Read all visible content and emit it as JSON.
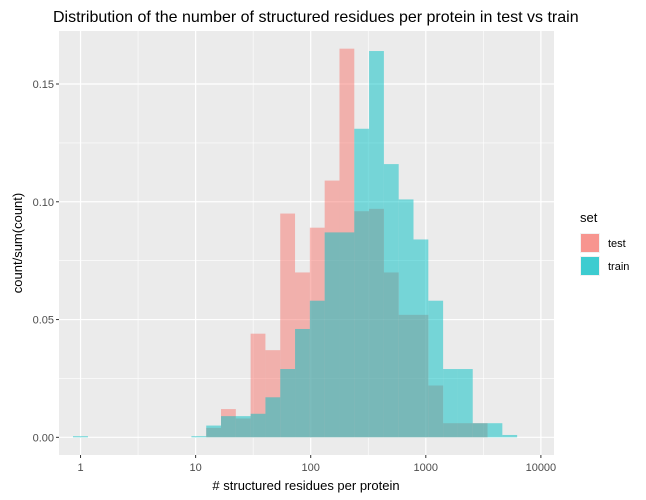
{
  "chart_data": {
    "type": "bar",
    "subtype": "overlapping histogram",
    "title": "Distribution of the number of structured residues per protein in test vs train",
    "xlabel": "# structured residues per protein",
    "ylabel": "count/sum(count)",
    "x_scale": "log10",
    "xlim": [
      0.65,
      13000
    ],
    "ylim": [
      -0.0075,
      0.1725
    ],
    "x_ticks": [
      1,
      10,
      100,
      1000,
      10000
    ],
    "x_tick_labels": [
      "1",
      "10",
      "100",
      "1000",
      "10000"
    ],
    "y_ticks": [
      0.0,
      0.05,
      0.1,
      0.15
    ],
    "y_tick_labels": [
      "0.00",
      "0.05",
      "0.10",
      "0.15"
    ],
    "grid": true,
    "legend": {
      "title": "set",
      "position": "right"
    },
    "bin_edges": [
      0.86,
      1.16,
      1.55,
      2.09,
      2.81,
      3.78,
      5.08,
      6.83,
      9.19,
      12.36,
      16.62,
      22.35,
      30.06,
      40.42,
      54.36,
      73.1,
      98.3,
      132.2,
      177.8,
      239.1,
      321.5,
      432.4,
      581.4,
      781.9,
      1051.5,
      1414.0,
      1901.6,
      2557.2,
      3438.9,
      4624.6,
      6219.0,
      8363.2
    ],
    "series": [
      {
        "name": "test",
        "color": "#F8766D",
        "values": [
          0,
          0,
          0,
          0,
          0,
          0,
          0,
          0,
          0,
          0.004,
          0.012,
          0.008,
          0.044,
          0.037,
          0.095,
          0.07,
          0.089,
          0.109,
          0.165,
          0.096,
          0.097,
          0.07,
          0.052,
          0.052,
          0.022,
          0.006,
          0.006,
          0.006,
          0,
          0,
          0
        ]
      },
      {
        "name": "train",
        "color": "#00BFC4",
        "values": [
          0.0005,
          0,
          0,
          0,
          0,
          0,
          0,
          0,
          0.0005,
          0.005,
          0.009,
          0.009,
          0.01,
          0.017,
          0.029,
          0.046,
          0.058,
          0.087,
          0.087,
          0.131,
          0.164,
          0.116,
          0.101,
          0.084,
          0.058,
          0.029,
          0.029,
          0.006,
          0.006,
          0.001,
          0
        ]
      }
    ]
  }
}
